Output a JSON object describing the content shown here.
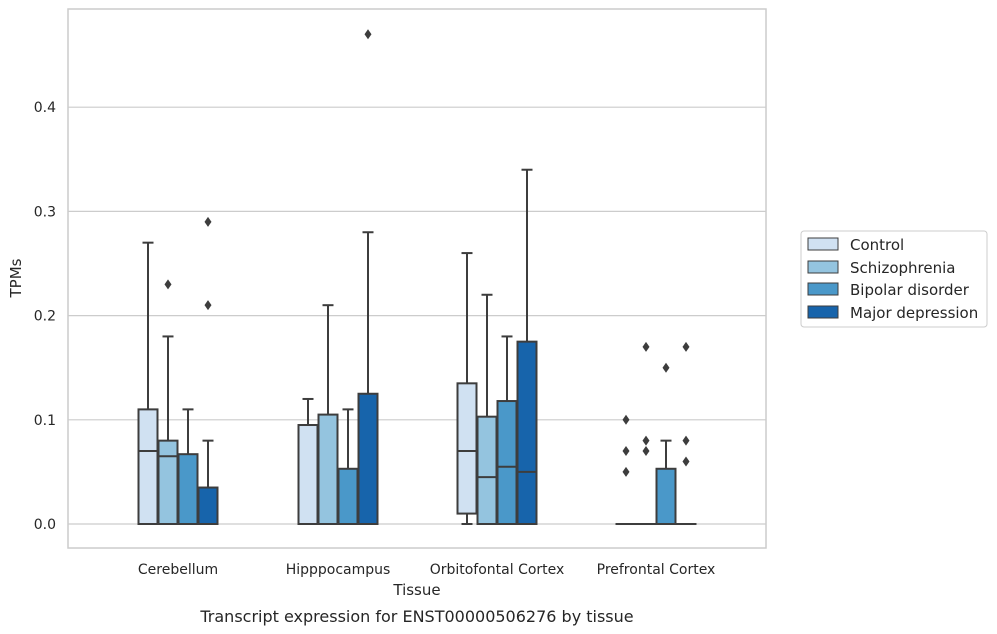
{
  "chart_data": {
    "type": "box",
    "xlabel": "Tissue",
    "ylabel": "TPMs",
    "caption": "Transcript expression for ENST00000506276 by tissue",
    "ylim": [
      -0.022,
      0.49
    ],
    "yticks": [
      "0.0",
      "0.1",
      "0.2",
      "0.3",
      "0.4"
    ],
    "grid": true,
    "legend_position": "right",
    "categories": [
      "Cerebellum",
      "Hipppocampus",
      "Orbitofontal Cortex",
      "Prefrontal Cortex"
    ],
    "series": [
      {
        "name": "Control",
        "color": "#d0e1f2",
        "boxes": [
          {
            "q1": 0.0,
            "median": 0.07,
            "q3": 0.11,
            "whisker_low": 0.0,
            "whisker_high": 0.27,
            "outliers": []
          },
          {
            "q1": 0.0,
            "median": 0.0,
            "q3": 0.095,
            "whisker_low": 0.0,
            "whisker_high": 0.12,
            "outliers": []
          },
          {
            "q1": 0.01,
            "median": 0.07,
            "q3": 0.135,
            "whisker_low": 0.0,
            "whisker_high": 0.26,
            "outliers": []
          },
          {
            "q1": 0.0,
            "median": 0.0,
            "q3": 0.0,
            "whisker_low": 0.0,
            "whisker_high": 0.0,
            "outliers": [
              0.05,
              0.07,
              0.1
            ]
          }
        ]
      },
      {
        "name": "Schizophrenia",
        "color": "#94c4df",
        "boxes": [
          {
            "q1": 0.0,
            "median": 0.065,
            "q3": 0.08,
            "whisker_low": 0.0,
            "whisker_high": 0.18,
            "outliers": [
              0.23
            ]
          },
          {
            "q1": 0.0,
            "median": 0.0,
            "q3": 0.105,
            "whisker_low": 0.0,
            "whisker_high": 0.21,
            "outliers": []
          },
          {
            "q1": 0.0,
            "median": 0.045,
            "q3": 0.103,
            "whisker_low": 0.0,
            "whisker_high": 0.22,
            "outliers": []
          },
          {
            "q1": 0.0,
            "median": 0.0,
            "q3": 0.0,
            "whisker_low": 0.0,
            "whisker_high": 0.0,
            "outliers": [
              0.07,
              0.08,
              0.17
            ]
          }
        ]
      },
      {
        "name": "Bipolar disorder",
        "color": "#4a98c9",
        "boxes": [
          {
            "q1": 0.0,
            "median": 0.0,
            "q3": 0.067,
            "whisker_low": 0.0,
            "whisker_high": 0.11,
            "outliers": []
          },
          {
            "q1": 0.0,
            "median": 0.0,
            "q3": 0.053,
            "whisker_low": 0.0,
            "whisker_high": 0.11,
            "outliers": []
          },
          {
            "q1": 0.0,
            "median": 0.055,
            "q3": 0.118,
            "whisker_low": 0.0,
            "whisker_high": 0.18,
            "outliers": []
          },
          {
            "q1": 0.0,
            "median": 0.0,
            "q3": 0.053,
            "whisker_low": 0.0,
            "whisker_high": 0.08,
            "outliers": [
              0.15
            ]
          }
        ]
      },
      {
        "name": "Major depression",
        "color": "#1764ab",
        "boxes": [
          {
            "q1": 0.0,
            "median": 0.0,
            "q3": 0.035,
            "whisker_low": 0.0,
            "whisker_high": 0.08,
            "outliers": [
              0.21,
              0.29
            ]
          },
          {
            "q1": 0.0,
            "median": 0.0,
            "q3": 0.125,
            "whisker_low": 0.0,
            "whisker_high": 0.28,
            "outliers": [
              0.47
            ]
          },
          {
            "q1": 0.0,
            "median": 0.05,
            "q3": 0.175,
            "whisker_low": 0.0,
            "whisker_high": 0.34,
            "outliers": []
          },
          {
            "q1": 0.0,
            "median": 0.0,
            "q3": 0.0,
            "whisker_low": 0.0,
            "whisker_high": 0.0,
            "outliers": [
              0.06,
              0.08,
              0.17
            ]
          }
        ]
      }
    ],
    "colors": {
      "edge": "#3d3d3d",
      "grid": "#cccccc",
      "frame": "#cccccc",
      "outlier": "#3d3d3d"
    }
  }
}
